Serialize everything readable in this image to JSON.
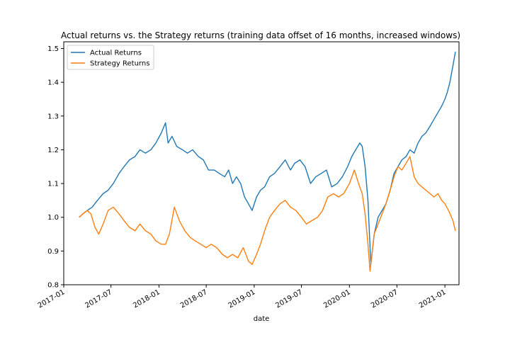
{
  "chart_data": {
    "type": "line",
    "title": "Actual returns vs. the Strategy returns (training data offset of 16 months, increased windows)",
    "xlabel": "date",
    "ylabel": "",
    "xlim": [
      "2017-01-01",
      "2021-02-24"
    ],
    "ylim": [
      0.8,
      1.52
    ],
    "x_ticks": [
      "2017-01",
      "2017-07",
      "2018-01",
      "2018-07",
      "2019-01",
      "2019-07",
      "2020-01",
      "2020-07",
      "2021-01"
    ],
    "y_ticks": [
      0.8,
      0.9,
      1.0,
      1.1,
      1.2,
      1.3,
      1.4,
      1.5
    ],
    "legend_position": "top-left",
    "grid": false,
    "series": [
      {
        "name": "Actual Returns",
        "color": "#1f77b4",
        "x": [
          "2017-03-01",
          "2017-03-15",
          "2017-04-01",
          "2017-04-20",
          "2017-05-10",
          "2017-06-01",
          "2017-06-20",
          "2017-07-10",
          "2017-08-01",
          "2017-08-20",
          "2017-09-10",
          "2017-10-01",
          "2017-10-20",
          "2017-11-10",
          "2017-12-01",
          "2017-12-20",
          "2018-01-10",
          "2018-01-26",
          "2018-02-05",
          "2018-02-20",
          "2018-03-10",
          "2018-04-01",
          "2018-04-20",
          "2018-05-10",
          "2018-06-01",
          "2018-06-20",
          "2018-07-10",
          "2018-08-01",
          "2018-08-20",
          "2018-09-10",
          "2018-09-25",
          "2018-10-10",
          "2018-10-25",
          "2018-11-10",
          "2018-11-25",
          "2018-12-10",
          "2018-12-24",
          "2019-01-10",
          "2019-01-25",
          "2019-02-10",
          "2019-03-01",
          "2019-03-20",
          "2019-04-10",
          "2019-04-30",
          "2019-05-20",
          "2019-06-05",
          "2019-06-25",
          "2019-07-15",
          "2019-08-05",
          "2019-08-25",
          "2019-09-15",
          "2019-10-05",
          "2019-10-25",
          "2019-11-15",
          "2019-12-05",
          "2019-12-25",
          "2020-01-10",
          "2020-01-25",
          "2020-02-10",
          "2020-02-19",
          "2020-03-01",
          "2020-03-12",
          "2020-03-23",
          "2020-04-05",
          "2020-04-20",
          "2020-05-05",
          "2020-05-20",
          "2020-06-05",
          "2020-06-20",
          "2020-07-05",
          "2020-07-20",
          "2020-08-05",
          "2020-08-20",
          "2020-09-05",
          "2020-09-20",
          "2020-10-05",
          "2020-10-20",
          "2020-11-05",
          "2020-11-20",
          "2020-12-05",
          "2020-12-20",
          "2021-01-01",
          "2021-01-10",
          "2021-01-20",
          "2021-02-01",
          "2021-02-10"
        ],
        "y": [
          1.0,
          1.01,
          1.02,
          1.03,
          1.05,
          1.07,
          1.08,
          1.1,
          1.13,
          1.15,
          1.17,
          1.18,
          1.2,
          1.19,
          1.2,
          1.22,
          1.25,
          1.28,
          1.22,
          1.24,
          1.21,
          1.2,
          1.19,
          1.2,
          1.18,
          1.17,
          1.14,
          1.14,
          1.13,
          1.12,
          1.14,
          1.1,
          1.12,
          1.1,
          1.06,
          1.04,
          1.02,
          1.06,
          1.08,
          1.09,
          1.12,
          1.13,
          1.15,
          1.17,
          1.14,
          1.16,
          1.17,
          1.15,
          1.1,
          1.12,
          1.13,
          1.14,
          1.09,
          1.1,
          1.12,
          1.15,
          1.18,
          1.2,
          1.22,
          1.21,
          1.15,
          1.05,
          0.86,
          0.95,
          1.0,
          1.02,
          1.04,
          1.08,
          1.13,
          1.15,
          1.17,
          1.18,
          1.2,
          1.19,
          1.22,
          1.24,
          1.25,
          1.27,
          1.29,
          1.31,
          1.33,
          1.35,
          1.37,
          1.4,
          1.45,
          1.49
        ]
      },
      {
        "name": "Strategy Returns",
        "color": "#ff7f0e",
        "x": [
          "2017-03-01",
          "2017-03-15",
          "2017-04-01",
          "2017-04-15",
          "2017-05-01",
          "2017-05-15",
          "2017-06-01",
          "2017-06-20",
          "2017-07-10",
          "2017-08-01",
          "2017-08-20",
          "2017-09-10",
          "2017-10-01",
          "2017-10-20",
          "2017-11-10",
          "2017-12-01",
          "2017-12-20",
          "2018-01-10",
          "2018-01-26",
          "2018-02-10",
          "2018-03-01",
          "2018-03-20",
          "2018-04-10",
          "2018-05-01",
          "2018-05-20",
          "2018-06-10",
          "2018-07-01",
          "2018-07-20",
          "2018-08-10",
          "2018-09-01",
          "2018-09-20",
          "2018-10-10",
          "2018-10-30",
          "2018-11-20",
          "2018-12-10",
          "2018-12-24",
          "2019-01-10",
          "2019-01-25",
          "2019-02-10",
          "2019-03-01",
          "2019-03-20",
          "2019-04-10",
          "2019-04-30",
          "2019-05-20",
          "2019-06-10",
          "2019-07-01",
          "2019-07-20",
          "2019-08-10",
          "2019-09-01",
          "2019-09-20",
          "2019-10-10",
          "2019-11-01",
          "2019-11-20",
          "2019-12-10",
          "2020-01-01",
          "2020-01-20",
          "2020-02-05",
          "2020-02-19",
          "2020-03-01",
          "2020-03-12",
          "2020-03-20",
          "2020-04-05",
          "2020-04-20",
          "2020-05-05",
          "2020-05-20",
          "2020-06-05",
          "2020-06-20",
          "2020-07-05",
          "2020-07-20",
          "2020-08-05",
          "2020-08-20",
          "2020-09-05",
          "2020-09-20",
          "2020-10-05",
          "2020-10-20",
          "2020-11-05",
          "2020-11-20",
          "2020-12-05",
          "2020-12-20",
          "2021-01-01",
          "2021-01-15",
          "2021-02-01",
          "2021-02-10"
        ],
        "y": [
          1.0,
          1.01,
          1.02,
          1.01,
          0.97,
          0.95,
          0.98,
          1.02,
          1.03,
          1.01,
          0.99,
          0.97,
          0.96,
          0.98,
          0.96,
          0.95,
          0.93,
          0.92,
          0.92,
          0.95,
          1.03,
          0.99,
          0.96,
          0.94,
          0.93,
          0.92,
          0.91,
          0.92,
          0.91,
          0.89,
          0.88,
          0.89,
          0.88,
          0.91,
          0.87,
          0.86,
          0.89,
          0.92,
          0.96,
          1.0,
          1.02,
          1.04,
          1.05,
          1.03,
          1.02,
          1.0,
          0.98,
          0.99,
          1.0,
          1.02,
          1.06,
          1.07,
          1.06,
          1.07,
          1.1,
          1.14,
          1.1,
          1.07,
          1.01,
          0.92,
          0.84,
          0.95,
          0.98,
          1.01,
          1.04,
          1.08,
          1.12,
          1.15,
          1.14,
          1.16,
          1.18,
          1.12,
          1.1,
          1.09,
          1.08,
          1.07,
          1.06,
          1.07,
          1.05,
          1.04,
          1.02,
          0.99,
          0.96
        ]
      }
    ]
  }
}
